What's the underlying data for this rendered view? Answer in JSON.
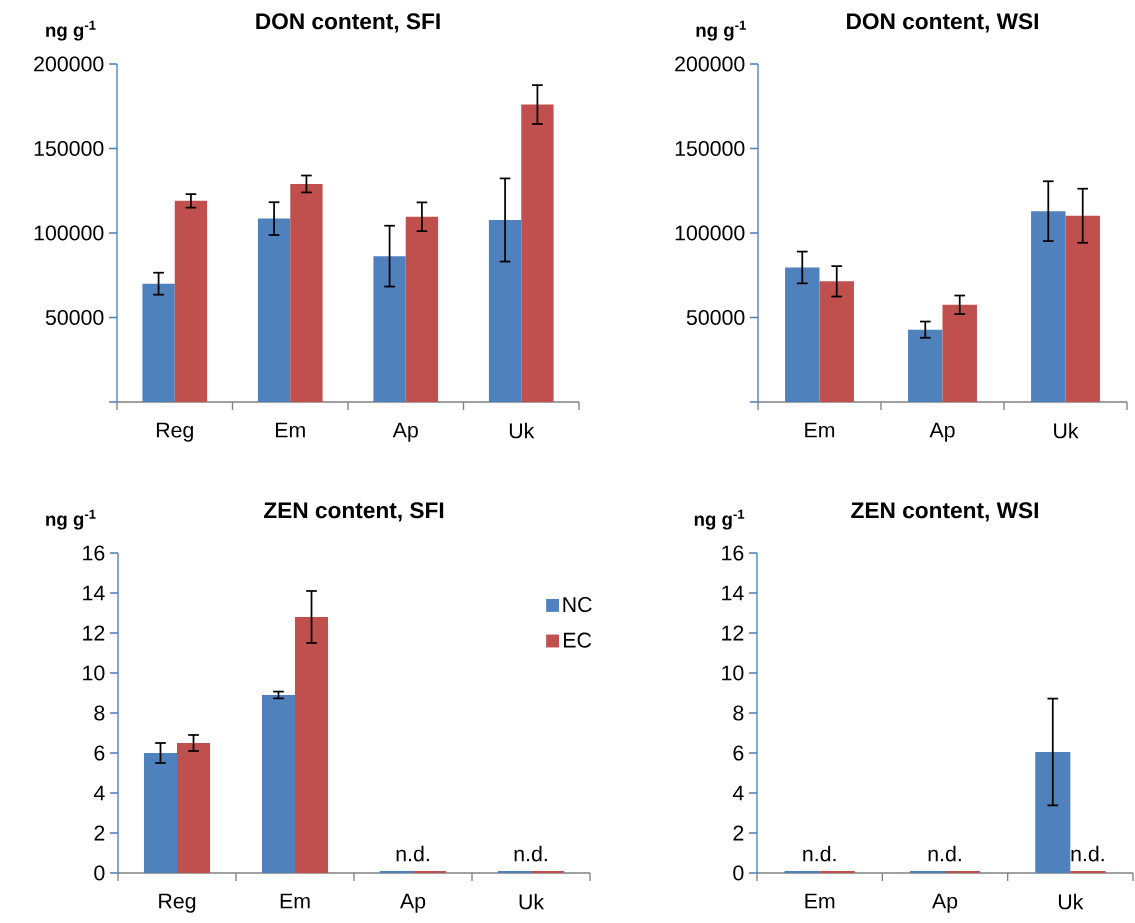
{
  "chart_data": [
    {
      "type": "bar",
      "title": "DON content, SFI",
      "ylabel": "ng g$^{-1}$",
      "categories": [
        "Reg",
        "Em",
        "Ap",
        "Uk"
      ],
      "ylim": [
        0,
        200000
      ],
      "yticks": [
        {
          "value": 0,
          "label": null
        },
        50000,
        100000,
        150000,
        200000
      ],
      "series": [
        {
          "color": "#4f81bd",
          "values": [
            70000,
            108500,
            86300,
            107700
          ],
          "errors": [
            6500,
            9700,
            18000,
            24600
          ]
        },
        {
          "color": "#c0504d",
          "values": [
            119000,
            129000,
            109600,
            176000
          ],
          "errors": [
            4000,
            5000,
            8500,
            11500
          ]
        }
      ]
    },
    {
      "type": "bar",
      "title": "DON content, WSI",
      "ylabel": "ng g$^{-1}$",
      "categories": [
        "Em",
        "Ap",
        "Uk"
      ],
      "ylim": [
        0,
        200000
      ],
      "yticks": [
        {
          "value": 0,
          "label": null
        },
        50000,
        100000,
        150000,
        200000
      ],
      "series": [
        {
          "color": "#4f81bd",
          "values": [
            79600,
            42800,
            112900
          ],
          "errors": [
            9400,
            4800,
            17700
          ]
        },
        {
          "color": "#c0504d",
          "values": [
            71400,
            57500,
            110200
          ],
          "errors": [
            9000,
            5500,
            16000
          ]
        }
      ]
    },
    {
      "type": "bar",
      "title": "ZEN content, SFI",
      "ylabel": "ng g$^{-1}$",
      "categories": [
        "Reg",
        "Em",
        "Ap",
        "Uk"
      ],
      "ylim": [
        0,
        16
      ],
      "yticks": [
        0,
        2,
        4,
        6,
        8,
        10,
        12,
        14,
        16
      ],
      "legend": "top right",
      "series": [
        {
          "name": "NC",
          "color": "#4f81bd",
          "values": [
            6.0,
            8.9,
            0.1,
            0.1
          ],
          "errors": [
            0.5,
            0.17,
            null,
            null
          ],
          "value_labels": [
            null,
            null,
            "n.d.",
            "n.d."
          ]
        },
        {
          "name": "EC",
          "color": "#c0504d",
          "values": [
            6.5,
            12.8,
            0.1,
            0.1
          ],
          "errors": [
            0.4,
            1.3,
            null,
            null
          ]
        }
      ]
    },
    {
      "type": "bar",
      "title": "ZEN content, WSI",
      "ylabel": "ng g$^{-1}$",
      "categories": [
        "Em",
        "Ap",
        "Uk"
      ],
      "ylim": [
        0,
        16
      ],
      "yticks": [
        0,
        2,
        4,
        6,
        8,
        10,
        12,
        14,
        16
      ],
      "series": [
        {
          "color": "#4f81bd",
          "values": [
            0.1,
            0.1,
            6.05
          ],
          "errors": [
            null,
            null,
            2.67
          ],
          "value_labels": [
            "n.d.",
            "n.d.",
            null
          ]
        },
        {
          "color": "#c0504d",
          "values": [
            0.1,
            0.1,
            0.1
          ],
          "errors": [
            null,
            null,
            null
          ],
          "value_labels": [
            null,
            null,
            "n.d."
          ]
        }
      ]
    }
  ]
}
